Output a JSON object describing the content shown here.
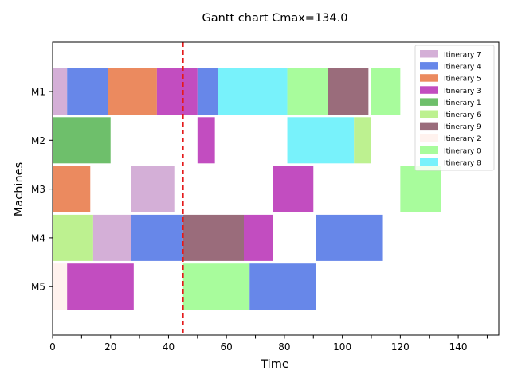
{
  "chart_data": {
    "type": "gantt",
    "title": "Gantt chart  Cmax=134.0",
    "xlabel": "Time",
    "ylabel": "Machines",
    "xlim": [
      0,
      154
    ],
    "x_ticks": [
      0,
      20,
      40,
      60,
      80,
      100,
      120,
      140
    ],
    "x_minor_ticks": [
      10,
      30,
      50,
      70,
      90,
      110,
      130,
      150
    ],
    "machines": [
      "M1",
      "M2",
      "M3",
      "M4",
      "M5"
    ],
    "vline": {
      "x": 45,
      "color": "#e41a1c",
      "style": "dashed"
    },
    "legend": [
      {
        "label": "Itinerary 7",
        "color": "#d4afd7"
      },
      {
        "label": "Itinerary 4",
        "color": "#6787e9"
      },
      {
        "label": "Itinerary 5",
        "color": "#eb8a5f"
      },
      {
        "label": "Itinerary 3",
        "color": "#c24dc0"
      },
      {
        "label": "Itinerary 1",
        "color": "#6ebf6b"
      },
      {
        "label": "Itinerary 6",
        "color": "#bdf190"
      },
      {
        "label": "Itinerary 9",
        "color": "#9a6c7b"
      },
      {
        "label": "Itinerary 2",
        "color": "#fff2ee"
      },
      {
        "label": "Itinerary 0",
        "color": "#a8fc9c"
      },
      {
        "label": "Itinerary 8",
        "color": "#78f2fb"
      }
    ],
    "tasks": [
      {
        "machine": "M1",
        "itinerary": "Itinerary 7",
        "start": 0,
        "end": 5
      },
      {
        "machine": "M1",
        "itinerary": "Itinerary 4",
        "start": 5,
        "end": 19
      },
      {
        "machine": "M1",
        "itinerary": "Itinerary 5",
        "start": 19,
        "end": 36
      },
      {
        "machine": "M1",
        "itinerary": "Itinerary 3",
        "start": 36,
        "end": 50
      },
      {
        "machine": "M1",
        "itinerary": "Itinerary 4",
        "start": 50,
        "end": 57
      },
      {
        "machine": "M1",
        "itinerary": "Itinerary 8",
        "start": 57,
        "end": 81
      },
      {
        "machine": "M1",
        "itinerary": "Itinerary 0",
        "start": 81,
        "end": 95
      },
      {
        "machine": "M1",
        "itinerary": "Itinerary 9",
        "start": 95,
        "end": 109
      },
      {
        "machine": "M1",
        "itinerary": "Itinerary 0",
        "start": 110,
        "end": 120
      },
      {
        "machine": "M2",
        "itinerary": "Itinerary 1",
        "start": 0,
        "end": 20
      },
      {
        "machine": "M2",
        "itinerary": "Itinerary 3",
        "start": 50,
        "end": 56
      },
      {
        "machine": "M2",
        "itinerary": "Itinerary 8",
        "start": 81,
        "end": 104
      },
      {
        "machine": "M2",
        "itinerary": "Itinerary 6",
        "start": 104,
        "end": 110
      },
      {
        "machine": "M3",
        "itinerary": "Itinerary 5",
        "start": 0,
        "end": 13
      },
      {
        "machine": "M3",
        "itinerary": "Itinerary 7",
        "start": 27,
        "end": 42
      },
      {
        "machine": "M3",
        "itinerary": "Itinerary 3",
        "start": 76,
        "end": 90
      },
      {
        "machine": "M3",
        "itinerary": "Itinerary 0",
        "start": 120,
        "end": 134
      },
      {
        "machine": "M4",
        "itinerary": "Itinerary 6",
        "start": 0,
        "end": 14
      },
      {
        "machine": "M4",
        "itinerary": "Itinerary 7",
        "start": 14,
        "end": 27
      },
      {
        "machine": "M4",
        "itinerary": "Itinerary 4",
        "start": 27,
        "end": 45
      },
      {
        "machine": "M4",
        "itinerary": "Itinerary 9",
        "start": 45,
        "end": 66
      },
      {
        "machine": "M4",
        "itinerary": "Itinerary 3",
        "start": 66,
        "end": 76
      },
      {
        "machine": "M4",
        "itinerary": "Itinerary 4",
        "start": 91,
        "end": 114
      },
      {
        "machine": "M5",
        "itinerary": "Itinerary 2",
        "start": 0,
        "end": 5
      },
      {
        "machine": "M5",
        "itinerary": "Itinerary 3",
        "start": 5,
        "end": 28
      },
      {
        "machine": "M5",
        "itinerary": "Itinerary 0",
        "start": 45,
        "end": 68
      },
      {
        "machine": "M5",
        "itinerary": "Itinerary 4",
        "start": 68,
        "end": 91
      }
    ]
  }
}
